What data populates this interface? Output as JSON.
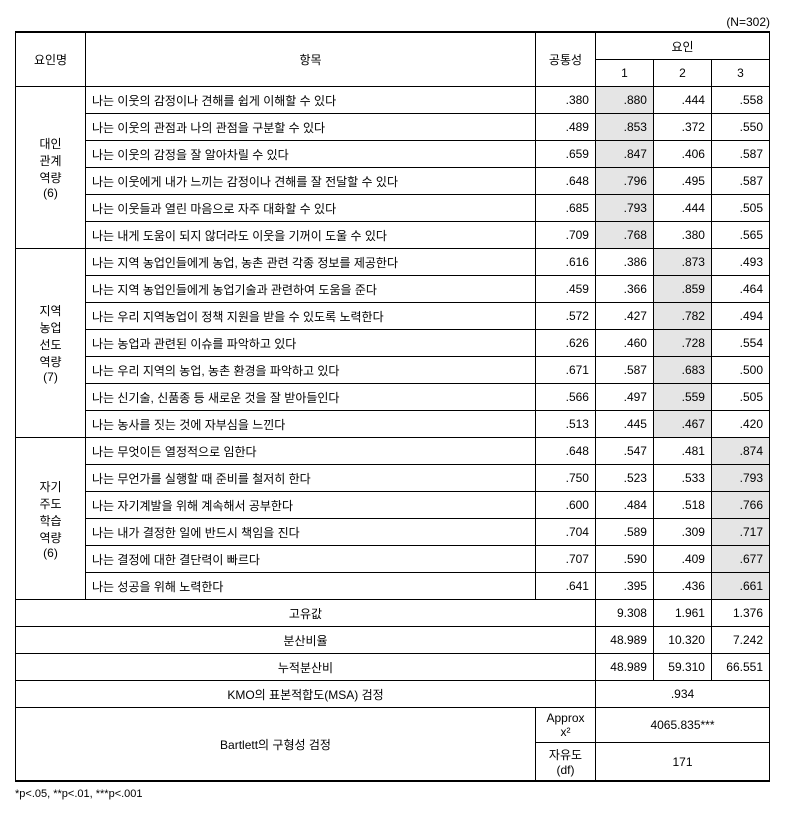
{
  "meta": {
    "nLabel": "(N=302)"
  },
  "headers": {
    "factorName": "요인명",
    "item": "항목",
    "communality": "공통성",
    "factor": "요인",
    "f1": "1",
    "f2": "2",
    "f3": "3"
  },
  "groups": [
    {
      "label": "대인\n관계\n역량\n(6)",
      "rows": [
        {
          "item": "나는 이웃의 감정이나 견해를 쉽게 이해할 수 있다",
          "comm": ".380",
          "f1": ".880",
          "f2": ".444",
          "f3": ".558",
          "hi": 1
        },
        {
          "item": "나는 이웃의 관점과 나의 관점을 구분할 수 있다",
          "comm": ".489",
          "f1": ".853",
          "f2": ".372",
          "f3": ".550",
          "hi": 1
        },
        {
          "item": "나는 이웃의 감정을 잘 알아차릴 수 있다",
          "comm": ".659",
          "f1": ".847",
          "f2": ".406",
          "f3": ".587",
          "hi": 1
        },
        {
          "item": "나는 이웃에게 내가 느끼는 감정이나 견해를 잘 전달할 수 있다",
          "comm": ".648",
          "f1": ".796",
          "f2": ".495",
          "f3": ".587",
          "hi": 1
        },
        {
          "item": "나는 이웃들과 열린 마음으로 자주 대화할 수 있다",
          "comm": ".685",
          "f1": ".793",
          "f2": ".444",
          "f3": ".505",
          "hi": 1
        },
        {
          "item": "나는 내게 도움이 되지 않더라도 이웃을 기꺼이 도울 수 있다",
          "comm": ".709",
          "f1": ".768",
          "f2": ".380",
          "f3": ".565",
          "hi": 1
        }
      ]
    },
    {
      "label": "지역\n농업\n선도\n역량\n(7)",
      "rows": [
        {
          "item": "나는 지역 농업인들에게 농업, 농촌 관련 각종 정보를 제공한다",
          "comm": ".616",
          "f1": ".386",
          "f2": ".873",
          "f3": ".493",
          "hi": 2
        },
        {
          "item": "나는 지역 농업인들에게 농업기술과 관련하여 도움을 준다",
          "comm": ".459",
          "f1": ".366",
          "f2": ".859",
          "f3": ".464",
          "hi": 2
        },
        {
          "item": "나는 우리 지역농업이 정책 지원을 받을 수 있도록 노력한다",
          "comm": ".572",
          "f1": ".427",
          "f2": ".782",
          "f3": ".494",
          "hi": 2
        },
        {
          "item": "나는 농업과 관련된 이슈를 파악하고 있다",
          "comm": ".626",
          "f1": ".460",
          "f2": ".728",
          "f3": ".554",
          "hi": 2
        },
        {
          "item": "나는 우리 지역의 농업, 농촌 환경을 파악하고 있다",
          "comm": ".671",
          "f1": ".587",
          "f2": ".683",
          "f3": ".500",
          "hi": 2
        },
        {
          "item": "나는 신기술, 신품종 등 새로운 것을 잘 받아들인다",
          "comm": ".566",
          "f1": ".497",
          "f2": ".559",
          "f3": ".505",
          "hi": 2
        },
        {
          "item": "나는 농사를 짓는 것에 자부심을 느낀다",
          "comm": ".513",
          "f1": ".445",
          "f2": ".467",
          "f3": ".420",
          "hi": 2
        }
      ]
    },
    {
      "label": "자기\n주도\n학습\n역량\n(6)",
      "rows": [
        {
          "item": "나는 무엇이든 열정적으로 임한다",
          "comm": ".648",
          "f1": ".547",
          "f2": ".481",
          "f3": ".874",
          "hi": 3
        },
        {
          "item": "나는 무언가를 실행할 때 준비를 철저히 한다",
          "comm": ".750",
          "f1": ".523",
          "f2": ".533",
          "f3": ".793",
          "hi": 3
        },
        {
          "item": "나는 자기계발을 위해 계속해서 공부한다",
          "comm": ".600",
          "f1": ".484",
          "f2": ".518",
          "f3": ".766",
          "hi": 3
        },
        {
          "item": "나는 내가 결정한 일에 반드시 책임을 진다",
          "comm": ".704",
          "f1": ".589",
          "f2": ".309",
          "f3": ".717",
          "hi": 3
        },
        {
          "item": "나는 결정에 대한 결단력이 빠르다",
          "comm": ".707",
          "f1": ".590",
          "f2": ".409",
          "f3": ".677",
          "hi": 3
        },
        {
          "item": "나는 성공을 위해 노력한다",
          "comm": ".641",
          "f1": ".395",
          "f2": ".436",
          "f3": ".661",
          "hi": 3
        }
      ]
    }
  ],
  "summary": {
    "eigenLabel": "고유값",
    "eigen": [
      "9.308",
      "1.961",
      "1.376"
    ],
    "varLabel": "분산비율",
    "var": [
      "48.989",
      "10.320",
      "7.242"
    ],
    "cumLabel": "누적분산비",
    "cum": [
      "48.989",
      "59.310",
      "66.551"
    ],
    "kmoLabel": "KMO의 표본적합도(MSA) 검정",
    "kmoVal": ".934",
    "bartlettLabel": "Bartlett의 구형성 검정",
    "approxLabel": "Approx  x²",
    "approxVal": "4065.835***",
    "dfLabel": "자유도(df)",
    "dfVal": "171"
  },
  "footnote": "*p<.05,  **p<.01,  ***p<.001"
}
